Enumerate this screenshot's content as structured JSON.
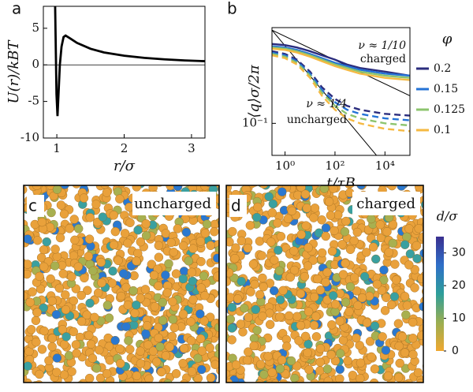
{
  "chart_data": [
    {
      "type": "line",
      "panel_label": "a",
      "xlabel": "r/σ",
      "ylabel": "U(r)/kBT",
      "x": [
        0.975,
        0.985,
        0.995,
        1.01,
        1.025,
        1.045,
        1.07,
        1.1,
        1.13,
        1.2,
        1.3,
        1.5,
        1.7,
        2.0,
        2.3,
        2.6,
        2.9,
        3.2
      ],
      "series": [
        {
          "color": "#000000",
          "values": [
            8,
            2,
            -4,
            -7,
            -4,
            0,
            2.5,
            3.8,
            4.0,
            3.6,
            3.0,
            2.2,
            1.7,
            1.25,
            0.95,
            0.75,
            0.6,
            0.5
          ]
        }
      ],
      "xlim": [
        0.8,
        3.2
      ],
      "ylim": [
        -10,
        8
      ],
      "xticks": [
        1,
        2,
        3
      ],
      "yticks": [
        -10,
        -5,
        0,
        5
      ],
      "zero_line": true
    },
    {
      "type": "line",
      "panel_label": "b",
      "xlabel": "t/τB",
      "ylabel": "⟨q⟩σ/2π",
      "xscale": "log",
      "yscale": "log",
      "x": [
        0.3,
        1,
        3,
        10,
        30,
        100,
        300,
        1000,
        3000,
        10000,
        30000,
        100000
      ],
      "series": [
        {
          "name": "0.2",
          "color": "#2b2d7e",
          "style": "solid",
          "values": [
            0.46,
            0.45,
            0.43,
            0.4,
            0.37,
            0.34,
            0.31,
            0.29,
            0.28,
            0.27,
            0.26,
            0.25
          ]
        },
        {
          "name": "0.15",
          "color": "#2473d6",
          "style": "solid",
          "values": [
            0.44,
            0.43,
            0.41,
            0.38,
            0.35,
            0.32,
            0.3,
            0.28,
            0.27,
            0.26,
            0.255,
            0.25
          ]
        },
        {
          "name": "0.125",
          "color": "#8cc46e",
          "style": "solid",
          "values": [
            0.43,
            0.42,
            0.4,
            0.37,
            0.34,
            0.31,
            0.29,
            0.27,
            0.26,
            0.25,
            0.245,
            0.24
          ]
        },
        {
          "name": "0.1",
          "color": "#f5b942",
          "style": "solid",
          "values": [
            0.42,
            0.41,
            0.39,
            0.36,
            0.33,
            0.3,
            0.28,
            0.26,
            0.25,
            0.24,
            0.235,
            0.23
          ]
        },
        {
          "color": "#2b2d7e",
          "style": "dashed",
          "values": [
            0.4,
            0.38,
            0.34,
            0.27,
            0.2,
            0.16,
            0.14,
            0.13,
            0.125,
            0.12,
            0.118,
            0.116
          ]
        },
        {
          "color": "#2473d6",
          "style": "dashed",
          "values": [
            0.39,
            0.37,
            0.33,
            0.26,
            0.19,
            0.15,
            0.13,
            0.12,
            0.115,
            0.11,
            0.108,
            0.106
          ]
        },
        {
          "color": "#8cc46e",
          "style": "dashed",
          "values": [
            0.38,
            0.36,
            0.32,
            0.25,
            0.18,
            0.14,
            0.12,
            0.11,
            0.105,
            0.1,
            0.098,
            0.096
          ]
        },
        {
          "color": "#f5b942",
          "style": "dashed",
          "values": [
            0.37,
            0.35,
            0.31,
            0.24,
            0.17,
            0.13,
            0.11,
            0.1,
            0.095,
            0.09,
            0.088,
            0.086
          ]
        }
      ],
      "reference_lines": [
        {
          "color": "#000000",
          "x": [
            0.3,
            100000
          ],
          "values": [
            0.6,
            0.17
          ]
        },
        {
          "color": "#000000",
          "x": [
            0.3,
            100000
          ],
          "values": [
            0.6,
            0.025
          ]
        }
      ],
      "annotations": [
        "ν ≈ 1/10",
        "charged",
        "ν ≈ 1/4",
        "uncharged"
      ],
      "legend_title": "φ",
      "xlim": [
        0.3,
        100000
      ],
      "ylim": [
        0.054,
        0.63
      ],
      "xticks": [
        {
          "value": 1,
          "label": "10⁰"
        },
        {
          "value": 100,
          "label": "10²"
        },
        {
          "value": 10000,
          "label": "10⁴"
        }
      ],
      "yticks": [
        {
          "value": 0.1,
          "label": "10⁻¹"
        }
      ]
    },
    {
      "type": "colorbar",
      "label": "d/σ",
      "clim": [
        0,
        35
      ],
      "ticks": [
        0,
        10,
        20,
        30
      ],
      "colors": [
        "#f0a830",
        "#9aae52",
        "#2e9e9a",
        "#2f6fc8",
        "#3a2f8f"
      ]
    }
  ],
  "images": [
    {
      "panel_label": "c",
      "caption": "uncharged"
    },
    {
      "panel_label": "d",
      "caption": "charged"
    }
  ]
}
